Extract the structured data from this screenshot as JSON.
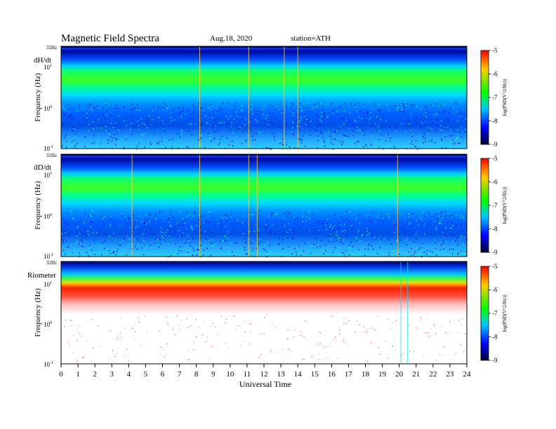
{
  "header": {
    "title": "Magnetic  Field  Spectra",
    "date": "Aug.18, 2020",
    "station": "station=ATH"
  },
  "colorbar": {
    "label": "log(PSD(V^2/Hz))",
    "ticks": [
      "-5",
      "-6",
      "-7",
      "-8",
      "-9"
    ],
    "colors": [
      "#ff0000",
      "#ffcc00",
      "#00ff00",
      "#00c8ff",
      "#0000ff",
      "#000033"
    ]
  },
  "chart_data": [
    {
      "type": "heatmap",
      "panel_label": "dH/dt",
      "ylabel": "Frequency  (Hz)",
      "ytick_labels": [
        "32Hz",
        "10^1",
        "10^0",
        "10^-1"
      ],
      "x": [
        0,
        1,
        2,
        3,
        4,
        5,
        6,
        7,
        8,
        9,
        10,
        11,
        12,
        13,
        14,
        15,
        16,
        17,
        18,
        19,
        20,
        21,
        22,
        23,
        24
      ],
      "ylim": [
        0.1,
        32
      ],
      "yscale": "log",
      "zlim": [
        -9,
        -5
      ],
      "features_hours": [
        8.2,
        11.1,
        13.2,
        14.0
      ]
    },
    {
      "type": "heatmap",
      "panel_label": "dD/dt",
      "ylabel": "Frequency  (Hz)",
      "ytick_labels": [
        "32Hz",
        "10^1",
        "10^0",
        "10^-1"
      ],
      "x": [
        0,
        1,
        2,
        3,
        4,
        5,
        6,
        7,
        8,
        9,
        10,
        11,
        12,
        13,
        14,
        15,
        16,
        17,
        18,
        19,
        20,
        21,
        22,
        23,
        24
      ],
      "ylim": [
        0.1,
        32
      ],
      "yscale": "log",
      "zlim": [
        -9,
        -5
      ],
      "features_hours": [
        4.2,
        8.2,
        11.1,
        11.6,
        19.9
      ]
    },
    {
      "type": "heatmap",
      "panel_label": "Riometer",
      "ylabel": "Frequency  (Hz)",
      "ytick_labels": [
        "32Hz",
        "10^1",
        "10^0",
        "10^-1"
      ],
      "x": [
        0,
        1,
        2,
        3,
        4,
        5,
        6,
        7,
        8,
        9,
        10,
        11,
        12,
        13,
        14,
        15,
        16,
        17,
        18,
        19,
        20,
        21,
        22,
        23,
        24
      ],
      "ylim": [
        0.1,
        32
      ],
      "yscale": "log",
      "zlim": [
        -9,
        -5
      ],
      "features_hours": [
        20.1,
        20.5
      ]
    }
  ],
  "xaxis": {
    "label": "Universal  Time",
    "ticks": [
      "0",
      "1",
      "2",
      "3",
      "4",
      "5",
      "6",
      "7",
      "8",
      "9",
      "10",
      "11",
      "12",
      "13",
      "14",
      "15",
      "16",
      "17",
      "18",
      "19",
      "20",
      "21",
      "22",
      "23",
      "24"
    ]
  }
}
